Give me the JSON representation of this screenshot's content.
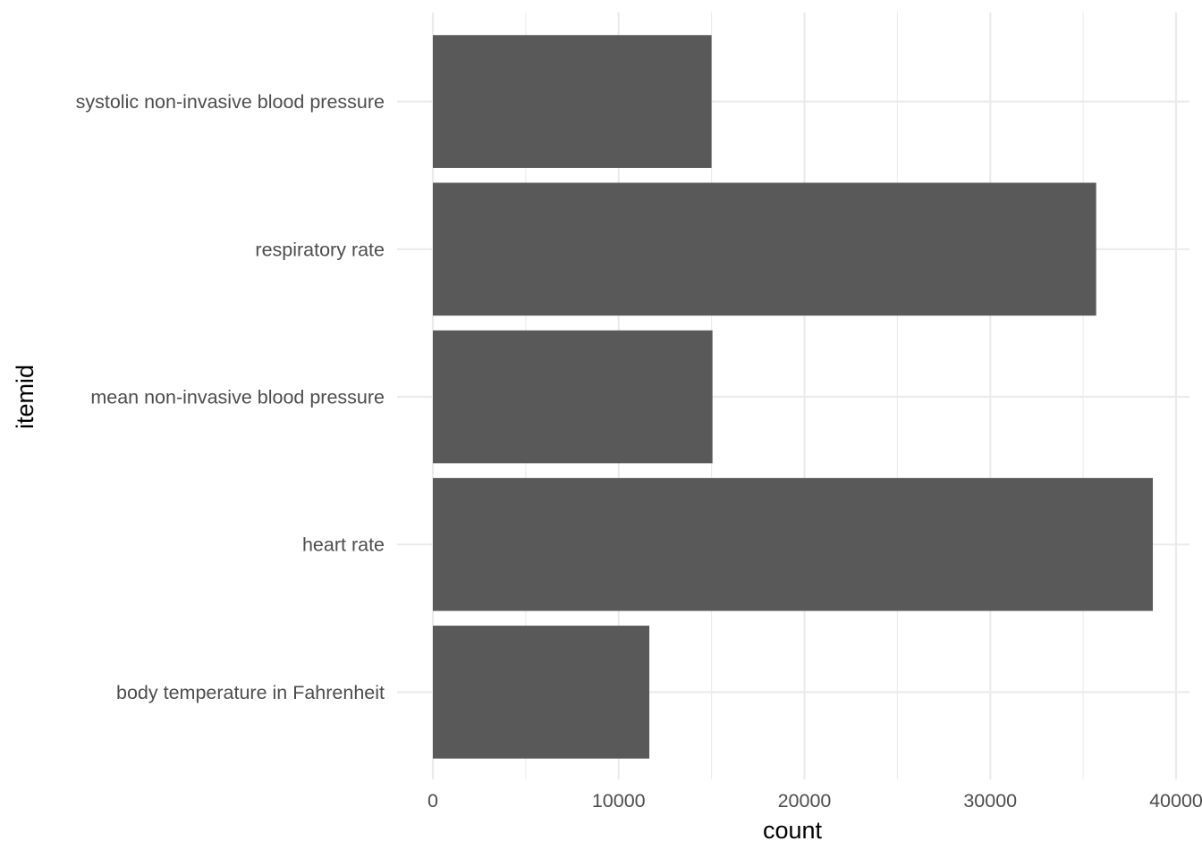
{
  "chart_data": {
    "type": "bar",
    "orientation": "horizontal",
    "categories": [
      "body temperature in Fahrenheit",
      "heart rate",
      "mean non-invasive blood pressure",
      "respiratory rate",
      "systolic non-invasive blood pressure"
    ],
    "values": [
      11650,
      38750,
      15050,
      35700,
      15000
    ],
    "title": "",
    "xlabel": "count",
    "ylabel": "itemid",
    "xlim": [
      0,
      40000
    ],
    "x_ticks": [
      0,
      10000,
      20000,
      30000,
      40000
    ],
    "x_tick_labels": [
      "0",
      "10000",
      "20000",
      "30000",
      "40000"
    ],
    "grid": true,
    "bar_color": "#595959",
    "grid_color": "#ebebeb"
  }
}
